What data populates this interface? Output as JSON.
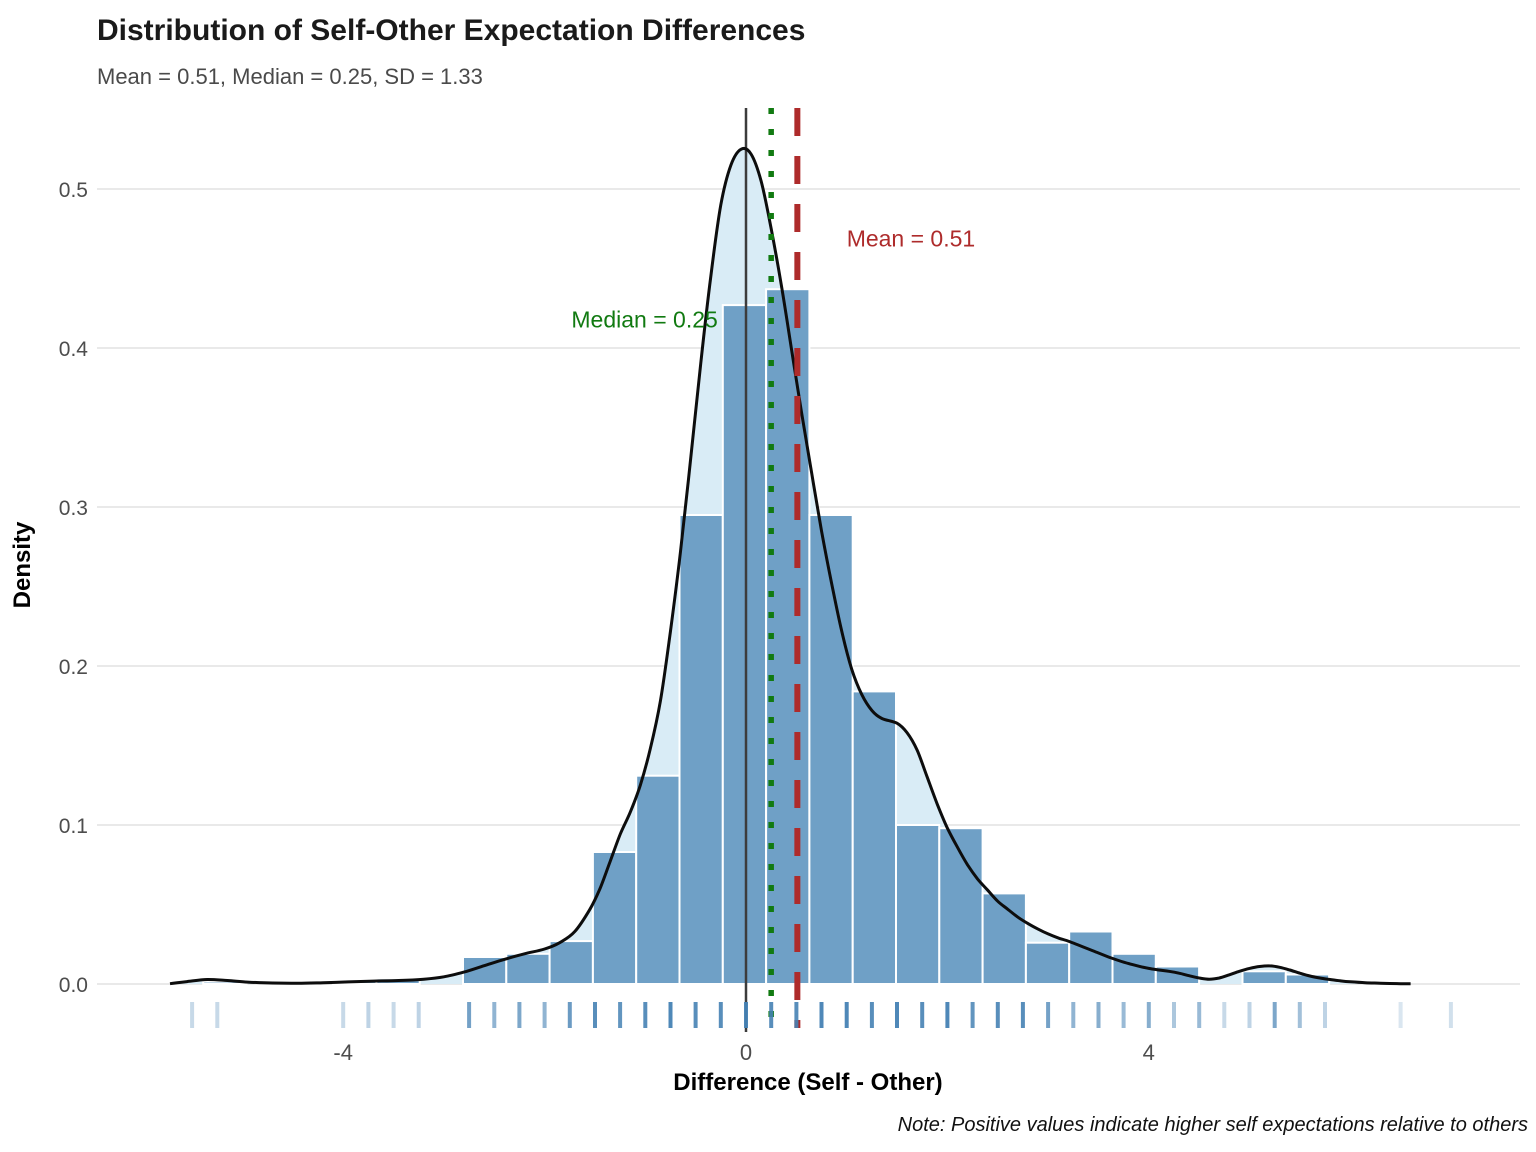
{
  "title": "Distribution of Self-Other Expectation Differences",
  "subtitle": "Mean = 0.51, Median = 0.25, SD = 1.33",
  "caption": "Note: Positive values indicate higher self expectations relative to others",
  "x_axis": {
    "label": "Difference (Self - Other)",
    "ticks": [
      -4,
      0,
      4
    ],
    "tick_labels": [
      "-4",
      "0",
      "4"
    ]
  },
  "y_axis": {
    "label": "Density",
    "ticks": [
      0.0,
      0.1,
      0.2,
      0.3,
      0.4,
      0.5
    ],
    "tick_labels": [
      "0.0",
      "0.1",
      "0.2",
      "0.3",
      "0.4",
      "0.5"
    ]
  },
  "colors": {
    "bar_fill": "#6FA0C6",
    "bar_stroke": "#FFFFFF",
    "density_fill": "#D9ECF6",
    "density_line": "#0D0D0D",
    "zero_line": "#3C3C3C",
    "median": "#117A11",
    "mean": "#AE2B2B",
    "grid": "#E9E9E9",
    "tick_text": "#4D4D4D",
    "rug": "#4682B4"
  },
  "chart_data": {
    "type": "histogram+density",
    "title": "Distribution of Self-Other Expectation Differences",
    "xlabel": "Difference (Self - Other)",
    "ylabel": "Density",
    "xlim": [
      -6.4,
      7.7
    ],
    "ylim": [
      0,
      0.551
    ],
    "grid": "horizontal-only",
    "binwidth": 0.43,
    "stats": {
      "mean": 0.51,
      "median": 0.25,
      "sd": 1.33
    },
    "bars": [
      {
        "x0": -5.39,
        "x1": -4.96,
        "h": 0.0015
      },
      {
        "x0": -4.1,
        "x1": -3.67,
        "h": 0.002
      },
      {
        "x0": -3.67,
        "x1": -3.24,
        "h": 0.0035
      },
      {
        "x0": -2.81,
        "x1": -2.38,
        "h": 0.017
      },
      {
        "x0": -2.38,
        "x1": -1.95,
        "h": 0.019
      },
      {
        "x0": -1.95,
        "x1": -1.52,
        "h": 0.027
      },
      {
        "x0": -1.52,
        "x1": -1.09,
        "h": 0.083
      },
      {
        "x0": -1.09,
        "x1": -0.66,
        "h": 0.131
      },
      {
        "x0": -0.66,
        "x1": -0.23,
        "h": 0.295
      },
      {
        "x0": -0.23,
        "x1": 0.2,
        "h": 0.427
      },
      {
        "x0": 0.2,
        "x1": 0.63,
        "h": 0.437
      },
      {
        "x0": 0.63,
        "x1": 1.06,
        "h": 0.295
      },
      {
        "x0": 1.06,
        "x1": 1.49,
        "h": 0.184
      },
      {
        "x0": 1.49,
        "x1": 1.92,
        "h": 0.1
      },
      {
        "x0": 1.92,
        "x1": 2.35,
        "h": 0.098
      },
      {
        "x0": 2.35,
        "x1": 2.78,
        "h": 0.057
      },
      {
        "x0": 2.78,
        "x1": 3.21,
        "h": 0.026
      },
      {
        "x0": 3.21,
        "x1": 3.64,
        "h": 0.033
      },
      {
        "x0": 3.64,
        "x1": 4.07,
        "h": 0.019
      },
      {
        "x0": 4.07,
        "x1": 4.5,
        "h": 0.011
      },
      {
        "x0": 4.93,
        "x1": 5.36,
        "h": 0.008
      },
      {
        "x0": 5.36,
        "x1": 5.79,
        "h": 0.006
      }
    ],
    "density_curve": [
      [
        -5.72,
        0.0002
      ],
      [
        -5.55,
        0.0015
      ],
      [
        -5.35,
        0.0028
      ],
      [
        -5.15,
        0.0022
      ],
      [
        -4.95,
        0.0012
      ],
      [
        -4.7,
        0.0006
      ],
      [
        -4.45,
        0.0005
      ],
      [
        -4.2,
        0.0008
      ],
      [
        -3.95,
        0.0013
      ],
      [
        -3.7,
        0.0018
      ],
      [
        -3.45,
        0.0022
      ],
      [
        -3.2,
        0.003
      ],
      [
        -3.0,
        0.0045
      ],
      [
        -2.8,
        0.0075
      ],
      [
        -2.6,
        0.0115
      ],
      [
        -2.4,
        0.0155
      ],
      [
        -2.2,
        0.019
      ],
      [
        -2.0,
        0.022
      ],
      [
        -1.85,
        0.026
      ],
      [
        -1.7,
        0.033
      ],
      [
        -1.55,
        0.047
      ],
      [
        -1.45,
        0.06
      ],
      [
        -1.35,
        0.077
      ],
      [
        -1.25,
        0.094
      ],
      [
        -1.15,
        0.108
      ],
      [
        -1.05,
        0.125
      ],
      [
        -0.95,
        0.148
      ],
      [
        -0.85,
        0.178
      ],
      [
        -0.75,
        0.222
      ],
      [
        -0.65,
        0.272
      ],
      [
        -0.55,
        0.33
      ],
      [
        -0.45,
        0.39
      ],
      [
        -0.35,
        0.445
      ],
      [
        -0.25,
        0.49
      ],
      [
        -0.15,
        0.515
      ],
      [
        -0.05,
        0.525
      ],
      [
        0.05,
        0.522
      ],
      [
        0.15,
        0.505
      ],
      [
        0.25,
        0.475
      ],
      [
        0.35,
        0.44
      ],
      [
        0.45,
        0.4
      ],
      [
        0.55,
        0.36
      ],
      [
        0.65,
        0.322
      ],
      [
        0.75,
        0.285
      ],
      [
        0.85,
        0.252
      ],
      [
        0.95,
        0.222
      ],
      [
        1.05,
        0.198
      ],
      [
        1.15,
        0.182
      ],
      [
        1.25,
        0.172
      ],
      [
        1.35,
        0.167
      ],
      [
        1.5,
        0.164
      ],
      [
        1.6,
        0.158
      ],
      [
        1.7,
        0.147
      ],
      [
        1.8,
        0.13
      ],
      [
        1.9,
        0.113
      ],
      [
        2.0,
        0.098
      ],
      [
        2.1,
        0.086
      ],
      [
        2.2,
        0.075
      ],
      [
        2.3,
        0.066
      ],
      [
        2.4,
        0.059
      ],
      [
        2.5,
        0.052
      ],
      [
        2.6,
        0.047
      ],
      [
        2.7,
        0.042
      ],
      [
        2.8,
        0.038
      ],
      [
        2.9,
        0.0345
      ],
      [
        3.0,
        0.0315
      ],
      [
        3.1,
        0.029
      ],
      [
        3.2,
        0.027
      ],
      [
        3.3,
        0.0245
      ],
      [
        3.4,
        0.022
      ],
      [
        3.5,
        0.0195
      ],
      [
        3.6,
        0.017
      ],
      [
        3.7,
        0.0148
      ],
      [
        3.8,
        0.0128
      ],
      [
        3.9,
        0.0112
      ],
      [
        4.0,
        0.0098
      ],
      [
        4.1,
        0.0088
      ],
      [
        4.2,
        0.008
      ],
      [
        4.3,
        0.0068
      ],
      [
        4.4,
        0.0052
      ],
      [
        4.5,
        0.0038
      ],
      [
        4.6,
        0.003
      ],
      [
        4.7,
        0.0038
      ],
      [
        4.8,
        0.0058
      ],
      [
        4.9,
        0.008
      ],
      [
        5.0,
        0.0098
      ],
      [
        5.1,
        0.011
      ],
      [
        5.2,
        0.0114
      ],
      [
        5.3,
        0.0105
      ],
      [
        5.4,
        0.0088
      ],
      [
        5.5,
        0.0068
      ],
      [
        5.6,
        0.005
      ],
      [
        5.7,
        0.0038
      ],
      [
        5.8,
        0.0028
      ],
      [
        5.9,
        0.002
      ],
      [
        6.0,
        0.0014
      ],
      [
        6.15,
        0.0008
      ],
      [
        6.3,
        0.0005
      ],
      [
        6.5,
        0.0002
      ],
      [
        6.6,
        0.0001
      ]
    ],
    "vlines": [
      {
        "id": "zero-line",
        "x": 0,
        "style": "solid"
      },
      {
        "id": "median-line",
        "x": 0.25,
        "style": "dotted"
      },
      {
        "id": "mean-line",
        "x": 0.51,
        "style": "dashed"
      }
    ],
    "annotations": [
      {
        "id": "median-label",
        "text": "Median = 0.25",
        "x": -0.28,
        "y": 0.418,
        "anchor": "end",
        "color_key": "median"
      },
      {
        "id": "mean-label",
        "text": "Mean = 0.51",
        "x": 1.0,
        "y": 0.469,
        "anchor": "start",
        "color_key": "mean"
      }
    ],
    "rug": [
      {
        "x": -5.5,
        "a": 0.3
      },
      {
        "x": -5.25,
        "a": 0.3
      },
      {
        "x": -4.0,
        "a": 0.3
      },
      {
        "x": -3.75,
        "a": 0.35
      },
      {
        "x": -3.5,
        "a": 0.3
      },
      {
        "x": -3.25,
        "a": 0.35
      },
      {
        "x": -2.75,
        "a": 0.75
      },
      {
        "x": -2.5,
        "a": 0.6
      },
      {
        "x": -2.25,
        "a": 0.7
      },
      {
        "x": -2.0,
        "a": 0.6
      },
      {
        "x": -1.75,
        "a": 0.8
      },
      {
        "x": -1.5,
        "a": 0.9
      },
      {
        "x": -1.25,
        "a": 0.85
      },
      {
        "x": -1.0,
        "a": 0.9
      },
      {
        "x": -0.75,
        "a": 0.95
      },
      {
        "x": -0.5,
        "a": 0.9
      },
      {
        "x": -0.25,
        "a": 0.9
      },
      {
        "x": 0.0,
        "a": 0.95
      },
      {
        "x": 0.25,
        "a": 0.9
      },
      {
        "x": 0.5,
        "a": 0.9
      },
      {
        "x": 0.75,
        "a": 0.95
      },
      {
        "x": 1.0,
        "a": 0.95
      },
      {
        "x": 1.25,
        "a": 0.9
      },
      {
        "x": 1.5,
        "a": 0.95
      },
      {
        "x": 1.75,
        "a": 0.9
      },
      {
        "x": 2.0,
        "a": 0.95
      },
      {
        "x": 2.25,
        "a": 0.85
      },
      {
        "x": 2.5,
        "a": 0.9
      },
      {
        "x": 2.75,
        "a": 0.9
      },
      {
        "x": 3.0,
        "a": 0.75
      },
      {
        "x": 3.25,
        "a": 0.6
      },
      {
        "x": 3.5,
        "a": 0.65
      },
      {
        "x": 3.75,
        "a": 0.55
      },
      {
        "x": 4.0,
        "a": 0.65
      },
      {
        "x": 4.25,
        "a": 0.45
      },
      {
        "x": 4.5,
        "a": 0.55
      },
      {
        "x": 4.75,
        "a": 0.3
      },
      {
        "x": 5.0,
        "a": 0.35
      },
      {
        "x": 5.25,
        "a": 0.7
      },
      {
        "x": 5.5,
        "a": 0.5
      },
      {
        "x": 5.75,
        "a": 0.35
      },
      {
        "x": 6.5,
        "a": 0.2
      },
      {
        "x": 7.0,
        "a": 0.25
      }
    ]
  }
}
